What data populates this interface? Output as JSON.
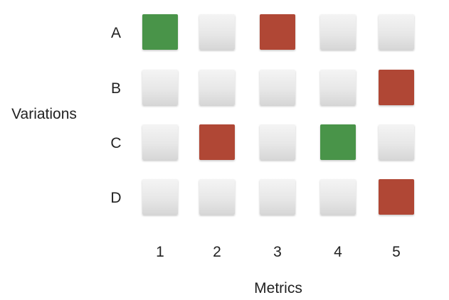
{
  "chart_data": {
    "type": "heatmap",
    "title": "",
    "xlabel": "Metrics",
    "ylabel": "Variations",
    "x": [
      "1",
      "2",
      "3",
      "4",
      "5"
    ],
    "y": [
      "A",
      "B",
      "C",
      "D"
    ],
    "cells": [
      [
        "success",
        "neutral",
        "failure",
        "neutral",
        "neutral"
      ],
      [
        "neutral",
        "neutral",
        "neutral",
        "neutral",
        "failure"
      ],
      [
        "neutral",
        "failure",
        "neutral",
        "success",
        "neutral"
      ],
      [
        "neutral",
        "neutral",
        "neutral",
        "neutral",
        "failure"
      ]
    ],
    "colors": {
      "success": "#4a9448",
      "failure": "#b04634",
      "neutral": "#e6e6e6"
    },
    "grid": false,
    "legend": "none"
  }
}
